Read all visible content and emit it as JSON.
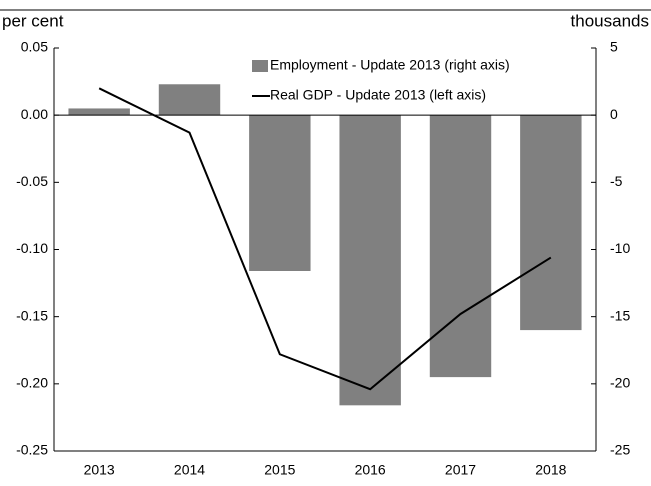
{
  "chart_data": {
    "type": "bar",
    "ylabel": "per cent",
    "y2label": "thousands",
    "categories": [
      "2013",
      "2014",
      "2015",
      "2016",
      "2017",
      "2018"
    ],
    "series": [
      {
        "name": "Employment - Update 2013 (right axis)",
        "type": "bar",
        "axis": "y2",
        "color": "#808080",
        "values": [
          0.5,
          2.3,
          -11.6,
          -21.6,
          -19.5,
          -16.0
        ]
      },
      {
        "name": "Real GDP - Update 2013 (left axis)",
        "type": "line",
        "axis": "y",
        "color": "#000000",
        "values": [
          0.02,
          -0.013,
          -0.178,
          -0.204,
          -0.148,
          -0.106
        ]
      }
    ],
    "ylim": [
      -0.25,
      0.05
    ],
    "yticks": [
      0.05,
      {
        "value": 0,
        "label": "0.00"
      },
      -0.05,
      {
        "value": -0.1,
        "label": "-0.10"
      },
      -0.15,
      {
        "value": -0.2,
        "label": "-0.20"
      },
      -0.25
    ],
    "y2lim": [
      -25,
      5
    ],
    "y2ticks": [
      5,
      0,
      -5,
      -10,
      -15,
      -20,
      -25
    ],
    "legend": "upper right"
  }
}
